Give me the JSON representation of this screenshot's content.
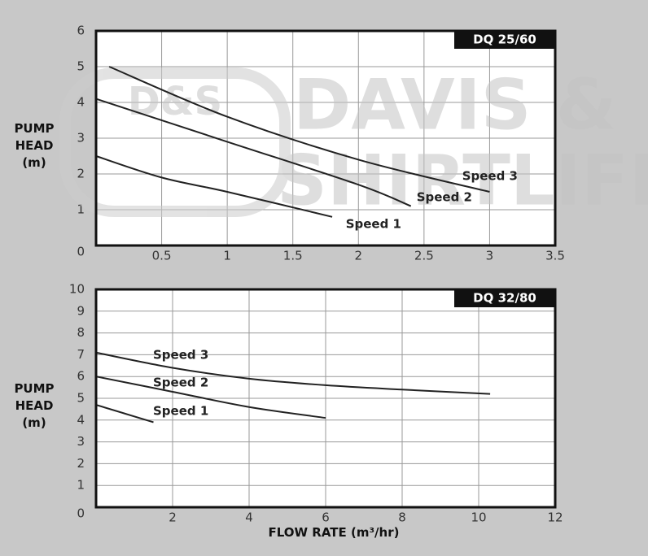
{
  "watermark": {
    "badge": "D&S",
    "line1": "DAVIS &",
    "line2": "SHIRTLIFF"
  },
  "chart_data": [
    {
      "type": "line",
      "title": "DQ 25/60",
      "ylabel": "PUMP HEAD (m)",
      "xlim": [
        0,
        3.5
      ],
      "xticks": [
        0.5,
        1,
        1.5,
        2,
        2.5,
        3,
        3.5
      ],
      "ylim": [
        0,
        6
      ],
      "yticks": [
        0,
        1,
        2,
        3,
        4,
        5,
        6
      ],
      "grid": true,
      "series": [
        {
          "name": "Speed 3",
          "color": "#222222",
          "x": [
            0.1,
            1,
            2,
            3
          ],
          "values": [
            5.0,
            3.6,
            2.4,
            1.5
          ]
        },
        {
          "name": "Speed 2",
          "color": "#222222",
          "x": [
            0,
            1,
            2,
            2.4
          ],
          "values": [
            4.1,
            2.9,
            1.7,
            1.1
          ]
        },
        {
          "name": "Speed 1",
          "color": "#222222",
          "x": [
            0,
            0.5,
            1,
            1.8
          ],
          "values": [
            2.5,
            1.9,
            1.5,
            0.8
          ]
        }
      ]
    },
    {
      "type": "line",
      "title": "DQ 32/80",
      "ylabel": "PUMP HEAD (m)",
      "xlabel": "FLOW RATE (m³/hr)",
      "xlim": [
        0,
        12
      ],
      "xticks": [
        2,
        4,
        6,
        8,
        10,
        12
      ],
      "ylim": [
        0,
        10
      ],
      "yticks": [
        0,
        1,
        2,
        3,
        4,
        5,
        6,
        7,
        8,
        9,
        10
      ],
      "grid": true,
      "series": [
        {
          "name": "Speed 3",
          "color": "#222222",
          "x": [
            0,
            2,
            4,
            6,
            8,
            10.3
          ],
          "values": [
            7.1,
            6.4,
            5.9,
            5.6,
            5.4,
            5.2
          ]
        },
        {
          "name": "Speed 2",
          "color": "#222222",
          "x": [
            0,
            2,
            4,
            6
          ],
          "values": [
            6.0,
            5.3,
            4.6,
            4.1
          ]
        },
        {
          "name": "Speed 1",
          "color": "#222222",
          "x": [
            0,
            1.5
          ],
          "values": [
            4.7,
            3.9
          ]
        }
      ]
    }
  ]
}
